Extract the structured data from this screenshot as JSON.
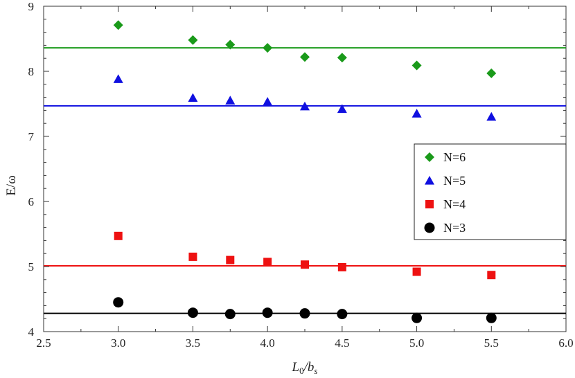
{
  "chart_data": {
    "type": "scatter",
    "title": "",
    "xlabel": {
      "main": "L",
      "sub0": "0",
      "mid": "/b",
      "sub1": "s"
    },
    "ylabel": "E/ω",
    "xlim": [
      2.5,
      6.0
    ],
    "ylim": [
      4.0,
      9.0
    ],
    "xticks": [
      {
        "v": 2.5,
        "label": "2.5"
      },
      {
        "v": 3.0,
        "label": "3.0"
      },
      {
        "v": 3.5,
        "label": "3.5"
      },
      {
        "v": 4.0,
        "label": "4.0"
      },
      {
        "v": 4.5,
        "label": "4.5"
      },
      {
        "v": 5.0,
        "label": "5.0"
      },
      {
        "v": 5.5,
        "label": "5.5"
      },
      {
        "v": 6.0,
        "label": "6.0"
      }
    ],
    "yticks": [
      {
        "v": 4,
        "label": "4"
      },
      {
        "v": 5,
        "label": "5"
      },
      {
        "v": 6,
        "label": "6"
      },
      {
        "v": 7,
        "label": "7"
      },
      {
        "v": 8,
        "label": "8"
      },
      {
        "v": 9,
        "label": "9"
      }
    ],
    "grid": false,
    "legend_position": "right",
    "series": [
      {
        "name": "N=6",
        "marker": "diamond",
        "color": "#1a9a1a",
        "reference_line": 8.36,
        "x": [
          3.0,
          3.5,
          3.75,
          4.0,
          4.25,
          4.5,
          5.0,
          5.5
        ],
        "y": [
          8.71,
          8.48,
          8.41,
          8.36,
          8.22,
          8.21,
          8.09,
          7.97
        ]
      },
      {
        "name": "N=5",
        "marker": "triangle",
        "color": "#1010e0",
        "reference_line": 7.47,
        "x": [
          3.0,
          3.5,
          3.75,
          4.0,
          4.25,
          4.5,
          5.0,
          5.5
        ],
        "y": [
          7.88,
          7.59,
          7.55,
          7.53,
          7.46,
          7.42,
          7.35,
          7.3
        ]
      },
      {
        "name": "N=4",
        "marker": "square",
        "color": "#ee1111",
        "reference_line": 5.01,
        "x": [
          3.0,
          3.5,
          3.75,
          4.0,
          4.25,
          4.5,
          5.0,
          5.5
        ],
        "y": [
          5.47,
          5.15,
          5.1,
          5.07,
          5.03,
          4.99,
          4.92,
          4.87
        ]
      },
      {
        "name": "N=3",
        "marker": "circle",
        "color": "#000000",
        "reference_line": 4.28,
        "x": [
          3.0,
          3.5,
          3.75,
          4.0,
          4.25,
          4.5,
          5.0,
          5.5
        ],
        "y": [
          4.45,
          4.29,
          4.27,
          4.29,
          4.28,
          4.27,
          4.21,
          4.21
        ]
      }
    ]
  }
}
